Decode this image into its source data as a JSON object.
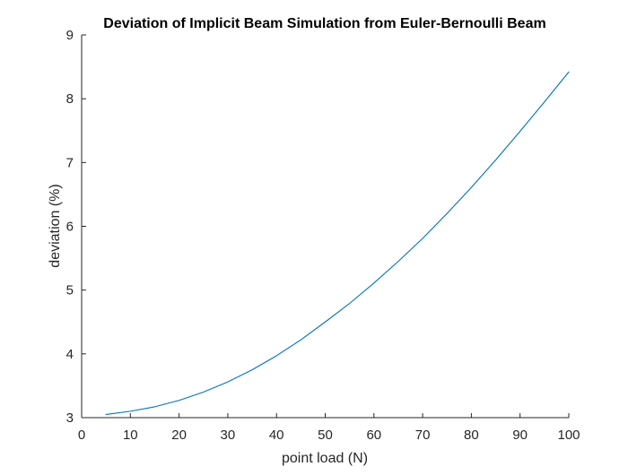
{
  "chart_data": {
    "type": "line",
    "title": "Deviation of Implicit Beam Simulation from Euler-Bernoulli Beam",
    "xlabel": "point load (N)",
    "ylabel": "deviation (%)",
    "xlim": [
      0,
      100
    ],
    "ylim": [
      3,
      9
    ],
    "xticks": [
      "0",
      "10",
      "20",
      "30",
      "40",
      "50",
      "60",
      "70",
      "80",
      "90",
      "100"
    ],
    "yticks": [
      "3",
      "4",
      "5",
      "6",
      "7",
      "8",
      "9"
    ],
    "grid": false,
    "legend": "none",
    "series": [
      {
        "color": "#0072BD",
        "x": [
          5,
          10,
          15,
          20,
          25,
          30,
          35,
          40,
          45,
          50,
          55,
          60,
          65,
          70,
          75,
          80,
          85,
          90,
          95,
          100
        ],
        "y": [
          3.05,
          3.1,
          3.17,
          3.27,
          3.4,
          3.56,
          3.75,
          3.97,
          4.22,
          4.5,
          4.79,
          5.11,
          5.45,
          5.81,
          6.2,
          6.61,
          7.04,
          7.49,
          7.95,
          8.42
        ]
      }
    ]
  }
}
